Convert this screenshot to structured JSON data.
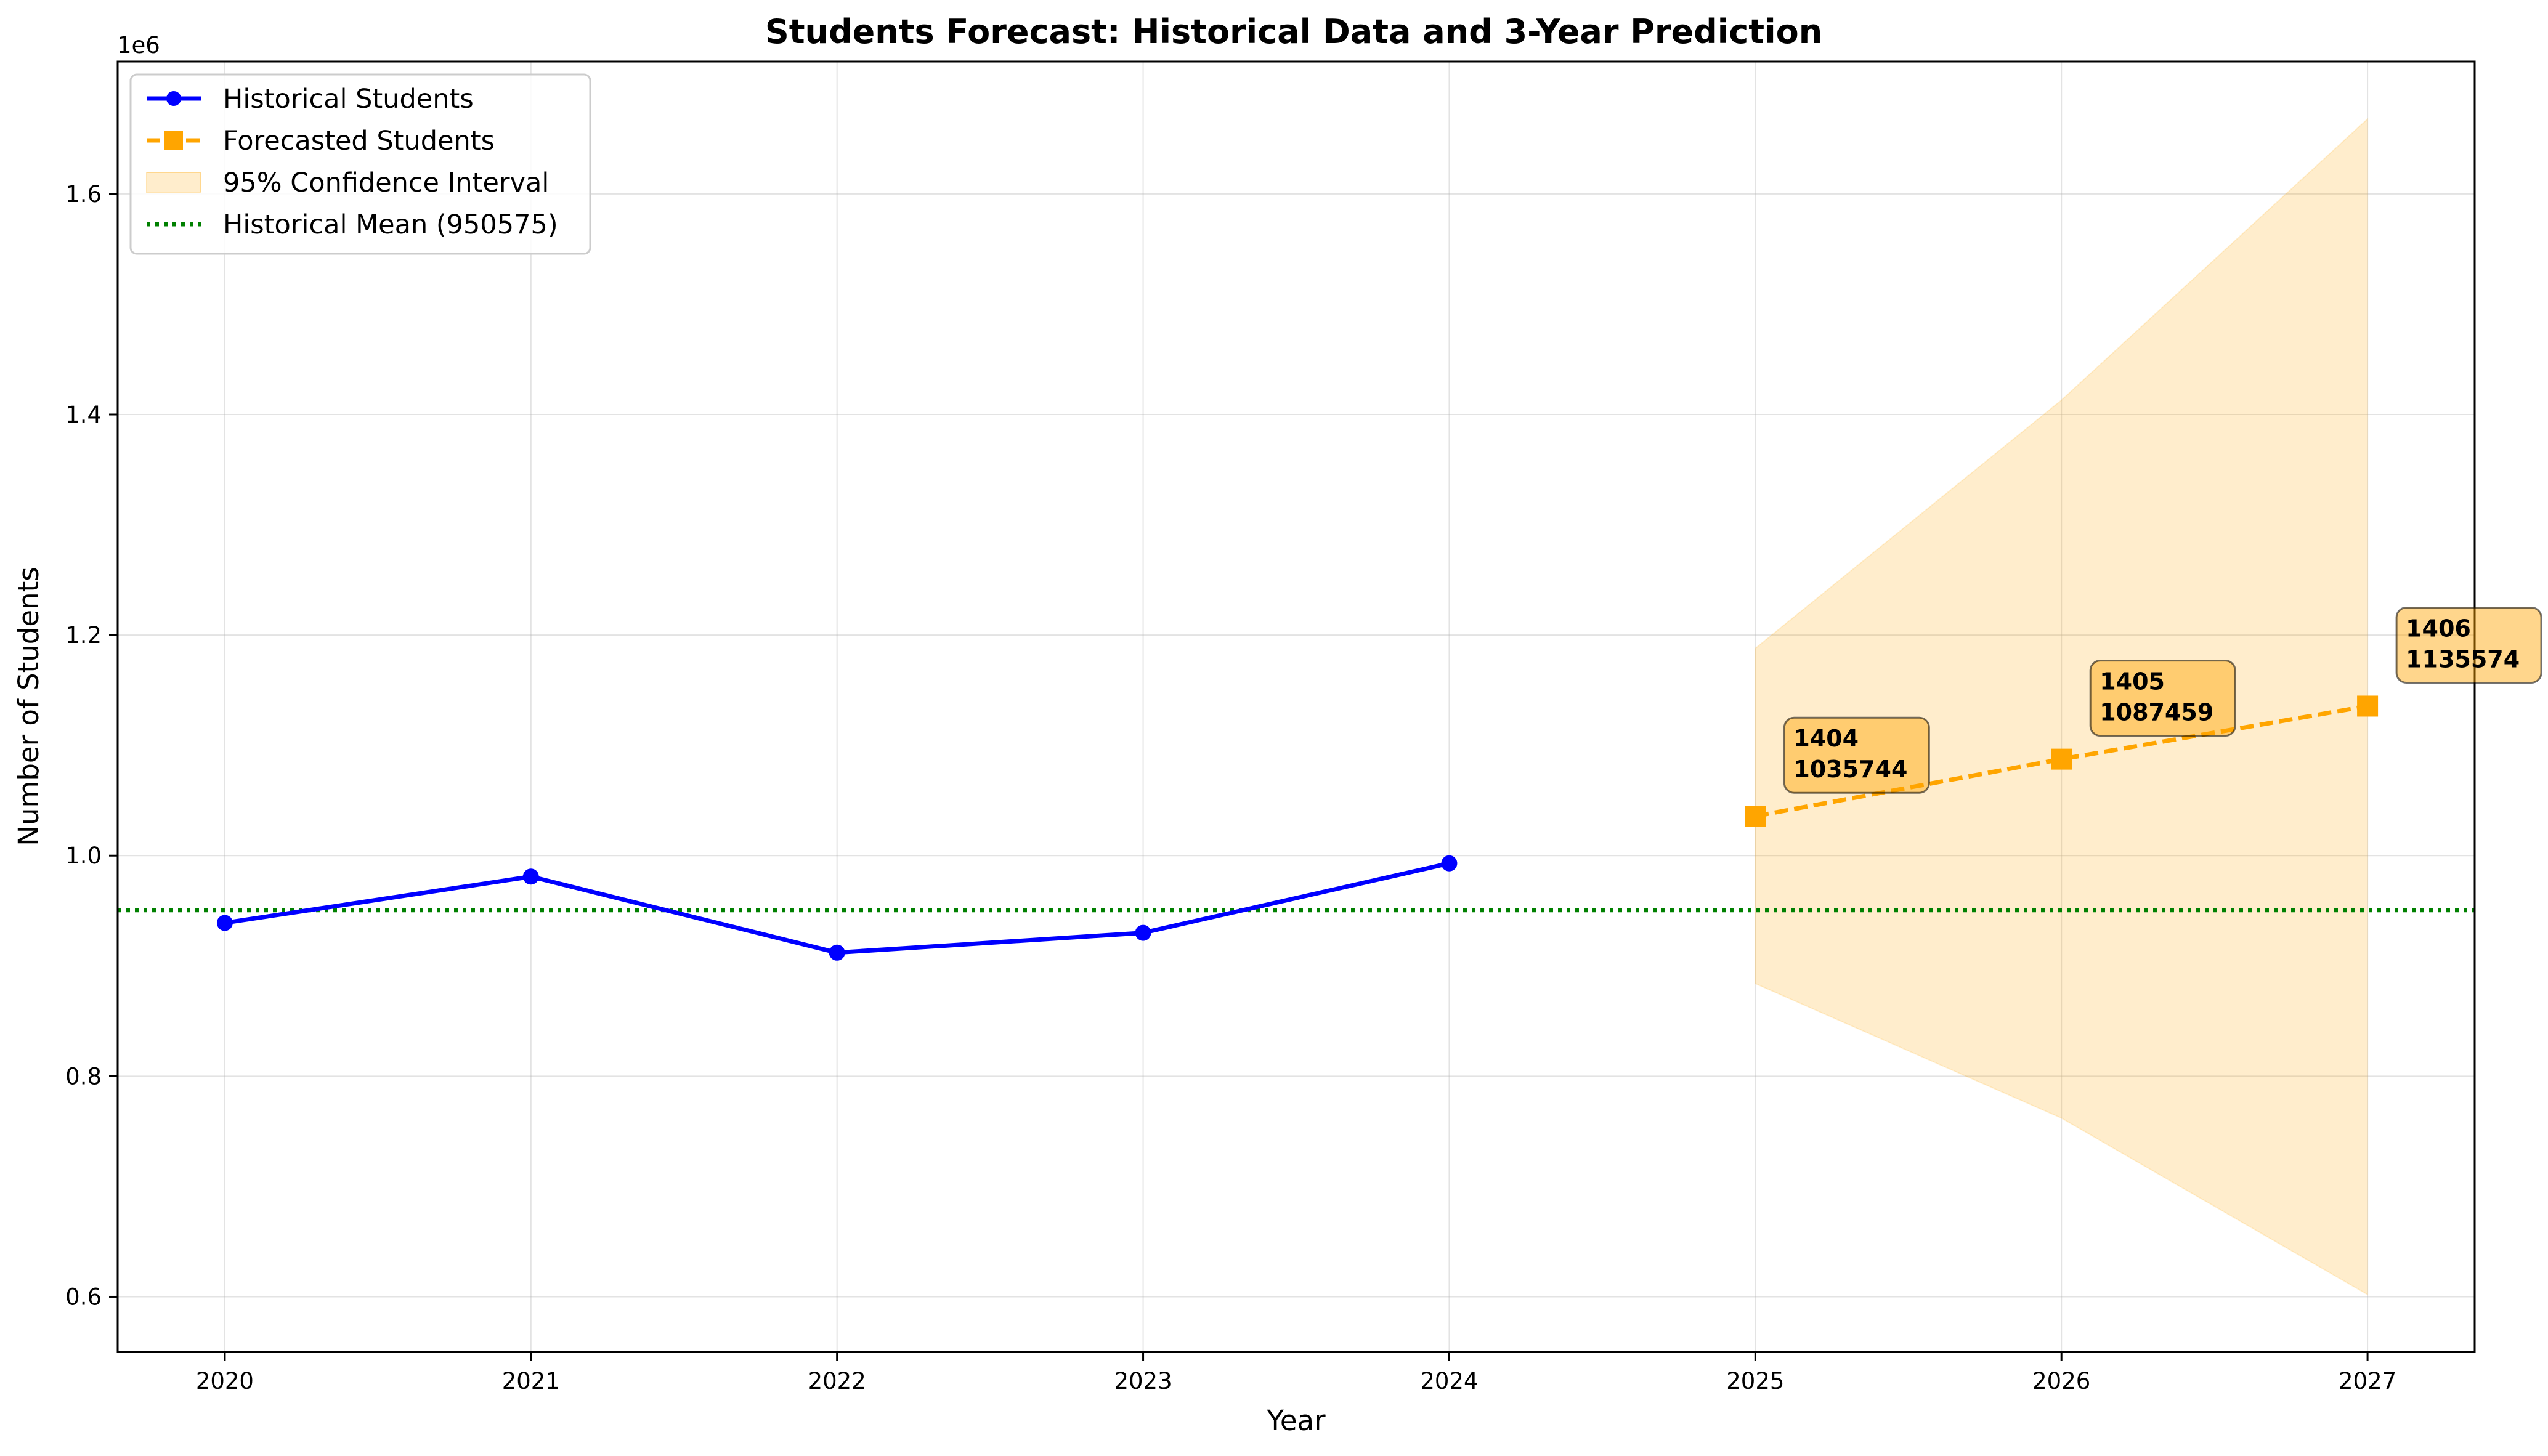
{
  "chart_data": {
    "type": "line",
    "title": "Students Forecast: Historical Data and 3-Year Prediction",
    "xlabel": "Year",
    "ylabel": "Number of Students",
    "y_offset_label": "1e6",
    "xlim": [
      2019.65,
      2027.35
    ],
    "ylim": [
      550000,
      1720000
    ],
    "x_ticks": [
      2020,
      2021,
      2022,
      2023,
      2024,
      2025,
      2026,
      2027
    ],
    "y_ticks": [
      600000,
      800000,
      1000000,
      1200000,
      1400000,
      1600000
    ],
    "y_tick_labels": [
      "0.6",
      "0.8",
      "1.0",
      "1.2",
      "1.4",
      "1.6"
    ],
    "grid": true,
    "legend_position": "upper-left",
    "series": [
      {
        "name": "Historical Students",
        "style": "solid line with circle markers",
        "color": "#0000ff",
        "x": [
          2020,
          2021,
          2022,
          2023,
          2024
        ],
        "values": [
          939000,
          981000,
          912000,
          930000,
          993000
        ]
      },
      {
        "name": "Forecasted Students",
        "style": "dashed line with square markers",
        "color": "#ffa500",
        "x": [
          2025,
          2026,
          2027
        ],
        "values": [
          1035744,
          1087459,
          1135574
        ]
      }
    ],
    "confidence_interval": {
      "name": "95% Confidence Interval",
      "color": "#ffa500",
      "x": [
        2025,
        2026,
        2027
      ],
      "lower": [
        884000,
        762000,
        602000
      ],
      "upper": [
        1188000,
        1413000,
        1668000
      ]
    },
    "reference_line": {
      "name": "Historical Mean (950575)",
      "value": 950575,
      "color": "#008000",
      "style": "dotted"
    },
    "annotations": [
      {
        "x": 2025,
        "y": 1035744,
        "line1": "1404",
        "line2": "1035744"
      },
      {
        "x": 2026,
        "y": 1087459,
        "line1": "1405",
        "line2": "1087459"
      },
      {
        "x": 2027,
        "y": 1135574,
        "line1": "1406",
        "line2": "1135574"
      }
    ]
  }
}
